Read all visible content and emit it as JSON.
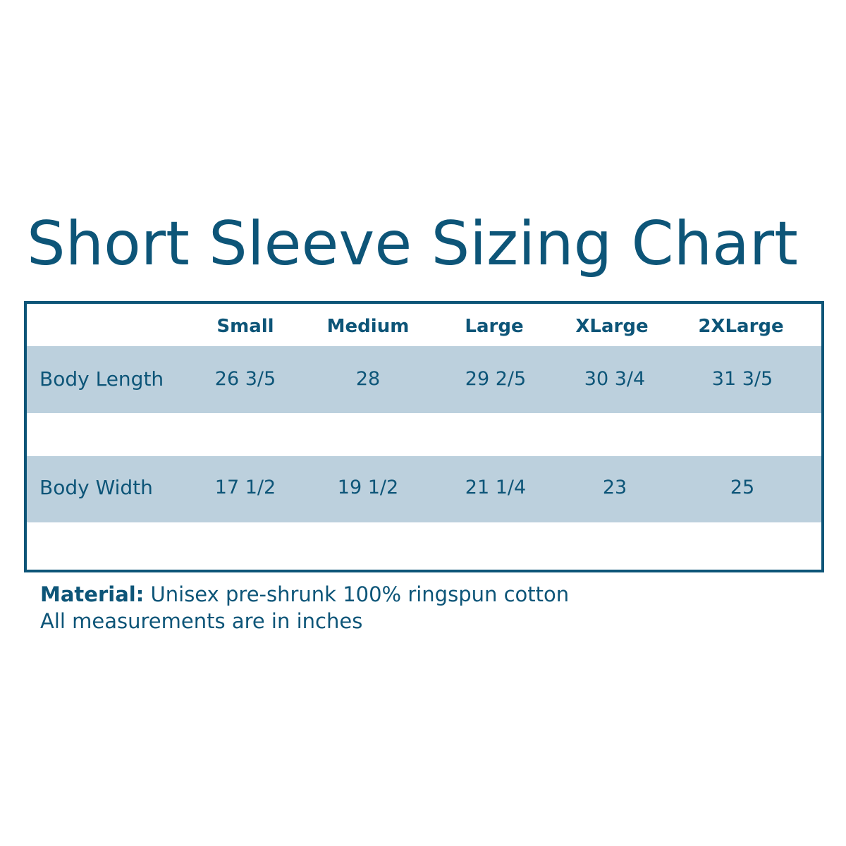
{
  "title": "Short Sleeve Sizing Chart",
  "colors": {
    "primary": "#0d5578",
    "band": "#bcd0dd"
  },
  "table": {
    "headers": [
      "Small",
      "Medium",
      "Large",
      "XLarge",
      "2XLarge"
    ],
    "rows": [
      {
        "label": "Body Length",
        "values": [
          "26 3/5",
          "28",
          "29 2/5",
          "30 3/4",
          "31 3/5"
        ]
      },
      {
        "label": "Body Width",
        "values": [
          "17 1/2",
          "19 1/2",
          "21 1/4",
          "23",
          "25"
        ]
      }
    ]
  },
  "footer": {
    "material_label": "Material:",
    "material_text": "Unisex pre-shrunk 100% ringspun cotton",
    "note": "All measurements are in inches"
  }
}
